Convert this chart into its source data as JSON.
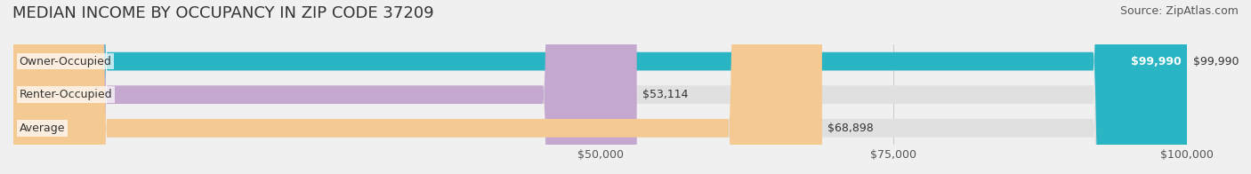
{
  "title": "MEDIAN INCOME BY OCCUPANCY IN ZIP CODE 37209",
  "source": "Source: ZipAtlas.com",
  "categories": [
    "Owner-Occupied",
    "Renter-Occupied",
    "Average"
  ],
  "values": [
    99990,
    53114,
    68898
  ],
  "bar_colors": [
    "#29b5c3",
    "#c4a8d0",
    "#f5c992"
  ],
  "bar_labels": [
    "$99,990",
    "$53,114",
    "$68,898"
  ],
  "xlim": [
    0,
    100000
  ],
  "xticks": [
    50000,
    75000,
    100000
  ],
  "xtick_labels": [
    "$50,000",
    "$75,000",
    "$100,000"
  ],
  "background_color": "#f0f0f0",
  "bar_bg_color": "#e8e8e8",
  "title_fontsize": 13,
  "source_fontsize": 9,
  "label_fontsize": 9,
  "tick_fontsize": 9,
  "bar_height": 0.55,
  "fig_width": 14.06,
  "fig_height": 1.96
}
